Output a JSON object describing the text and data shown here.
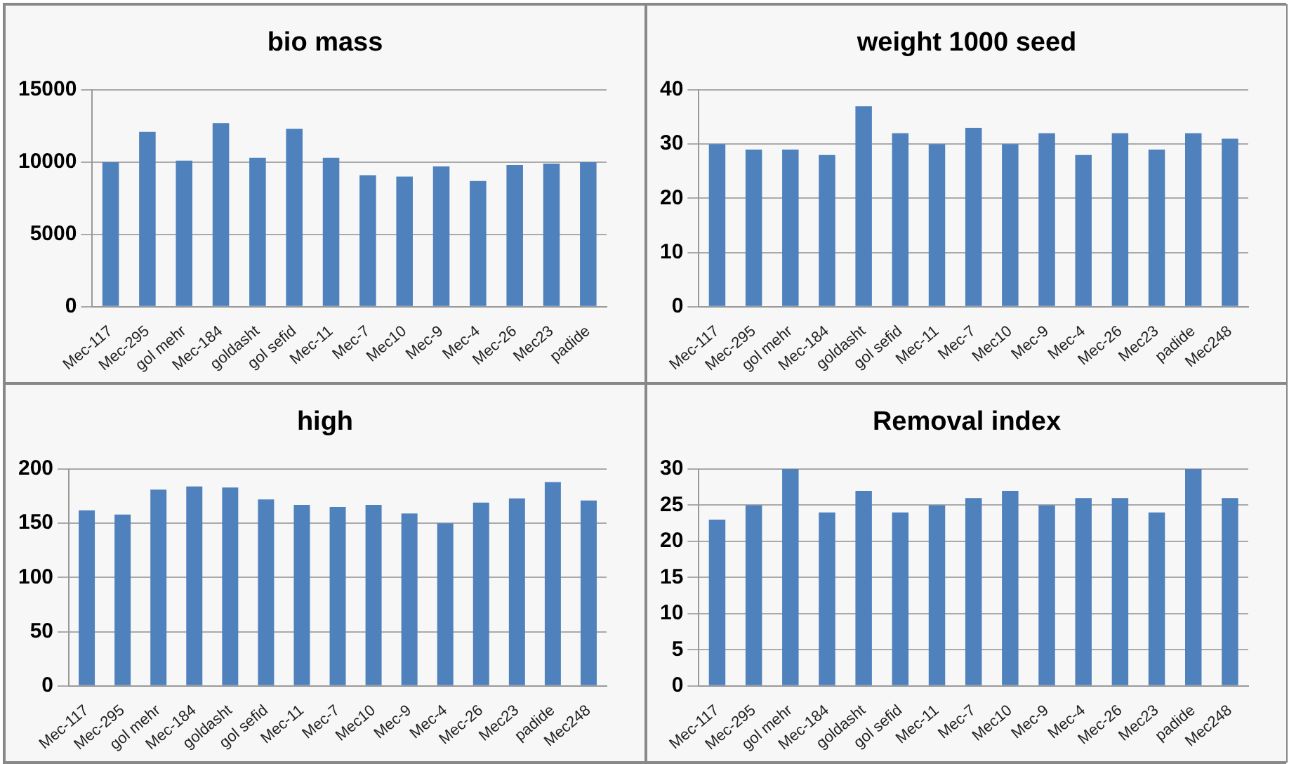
{
  "chart_data": [
    {
      "type": "bar",
      "title": "bio mass",
      "categories": [
        "Mec-117",
        "Mec-295",
        "gol mehr",
        "Mec-184",
        "goldasht",
        "gol sefid",
        "Mec-11",
        "Mec-7",
        "Mec10",
        "Mec-9",
        "Mec-4",
        "Mec-26",
        "Mec23",
        "padide"
      ],
      "values": [
        10000,
        12100,
        10100,
        12700,
        10300,
        12300,
        10300,
        9100,
        9000,
        9700,
        8700,
        9800,
        9900,
        10000
      ],
      "color": "#4f81bd",
      "ylim": [
        0,
        15000
      ],
      "yticks": [
        0,
        5000,
        10000,
        15000
      ],
      "grid": "y"
    },
    {
      "type": "bar",
      "title": "weight 1000 seed",
      "categories": [
        "Mec-117",
        "Mec-295",
        "gol mehr",
        "Mec-184",
        "goldasht",
        "gol sefid",
        "Mec-11",
        "Mec-7",
        "Mec10",
        "Mec-9",
        "Mec-4",
        "Mec-26",
        "Mec23",
        "padide",
        "Mec248"
      ],
      "values": [
        30,
        29,
        29,
        28,
        37,
        32,
        30,
        33,
        30,
        32,
        28,
        32,
        29,
        32,
        31
      ],
      "color": "#4f81bd",
      "ylim": [
        0,
        40
      ],
      "yticks": [
        0,
        10,
        20,
        30,
        40
      ],
      "grid": "y"
    },
    {
      "type": "bar",
      "title": "high",
      "categories": [
        "Mec-117",
        "Mec-295",
        "gol mehr",
        "Mec-184",
        "goldasht",
        "gol sefid",
        "Mec-11",
        "Mec-7",
        "Mec10",
        "Mec-9",
        "Mec-4",
        "Mec-26",
        "Mec23",
        "padide",
        "Mec248"
      ],
      "values": [
        162,
        158,
        181,
        184,
        183,
        172,
        167,
        165,
        167,
        159,
        150,
        169,
        173,
        188,
        171
      ],
      "color": "#4f81bd",
      "ylim": [
        0,
        200
      ],
      "yticks": [
        0,
        50,
        100,
        150,
        200
      ],
      "grid": "y"
    },
    {
      "type": "bar",
      "title": "Removal index",
      "categories": [
        "Mec-117",
        "Mec-295",
        "gol mehr",
        "Mec-184",
        "goldasht",
        "gol sefid",
        "Mec-11",
        "Mec-7",
        "Mec10",
        "Mec-9",
        "Mec-4",
        "Mec-26",
        "Mec23",
        "padide",
        "Mec248"
      ],
      "values": [
        23,
        25,
        30,
        24,
        27,
        24,
        25,
        26,
        27,
        25,
        26,
        26,
        24,
        30,
        26
      ],
      "color": "#4f81bd",
      "ylim": [
        0,
        30
      ],
      "yticks": [
        0,
        5,
        10,
        15,
        20,
        25,
        30
      ],
      "grid": "y"
    }
  ]
}
